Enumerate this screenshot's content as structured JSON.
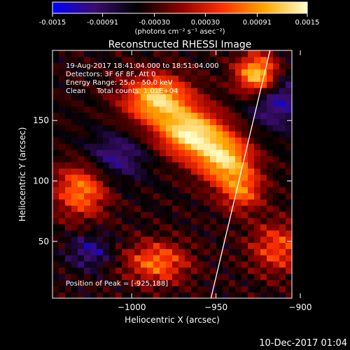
{
  "chart_data": {
    "type": "heatmap",
    "title": "Reconstructed RHESSI Image",
    "xlabel": "Heliocentric X (arcsec)",
    "ylabel": "Heliocentric Y (arcsec)",
    "colorbar": {
      "min": -0.0015,
      "max": 0.0015,
      "tick_values": [
        -0.0015,
        -0.00091,
        -0.0003,
        0.0003,
        0.00091,
        0.0015
      ],
      "tick_labels": [
        "-0.0015",
        "-0.00091",
        "-0.00030",
        "0.00030",
        "0.00091",
        "0.0015"
      ],
      "unit_label": "(photons cm⁻² s⁻¹ asec⁻²)",
      "colors": [
        "#0000ff",
        "#3a0d6e",
        "#000000",
        "#8a0000",
        "#ff3000",
        "#ffa800",
        "#ffffcc"
      ]
    },
    "xlim": [
      -1047,
      -905
    ],
    "ylim": [
      3,
      208
    ],
    "x_ticks": [
      {
        "value": -1000,
        "label": "−1000"
      },
      {
        "value": -950,
        "label": "−950"
      },
      {
        "value": -900,
        "label": "−900"
      }
    ],
    "y_ticks": [
      {
        "value": 50,
        "label": "50"
      },
      {
        "value": 100,
        "label": "100"
      },
      {
        "value": 150,
        "label": "150"
      }
    ],
    "annotations": [
      "19-Aug-2017 18:41:04.000 to 18:51:04.000",
      "Detectors: 3F 6F 8F, Att 0",
      "Energy Range: 25.0 - 50.0 keV",
      "Clean     Total counts: 1.01E+04"
    ],
    "peak_label": "Position of Peak = [-925,188]",
    "peak_position": [
      -925,
      188
    ],
    "limb_line": [
      [
        -953,
        3
      ],
      [
        -918,
        208
      ]
    ],
    "sources": [
      {
        "x": -925,
        "y": 188,
        "sx": 9,
        "sy": 12,
        "amp": 1.0
      },
      {
        "x": -985,
        "y": 168,
        "sx": 14,
        "sy": 14,
        "amp": 0.85
      },
      {
        "x": -965,
        "y": 140,
        "sx": 14,
        "sy": 14,
        "amp": 0.9
      },
      {
        "x": -945,
        "y": 118,
        "sx": 12,
        "sy": 14,
        "amp": 0.8
      },
      {
        "x": -935,
        "y": 92,
        "sx": 9,
        "sy": 12,
        "amp": 0.55
      },
      {
        "x": -1030,
        "y": 93,
        "sx": 11,
        "sy": 16,
        "amp": 0.65
      },
      {
        "x": -985,
        "y": 33,
        "sx": 13,
        "sy": 12,
        "amp": 0.6
      },
      {
        "x": -913,
        "y": 45,
        "sx": 12,
        "sy": 15,
        "amp": 0.5
      },
      {
        "x": -1025,
        "y": 42,
        "sx": 9,
        "sy": 10,
        "amp": -0.35
      },
      {
        "x": -915,
        "y": 170,
        "sx": 12,
        "sy": 18,
        "amp": -0.45
      },
      {
        "x": -1010,
        "y": 120,
        "sx": 14,
        "sy": 14,
        "amp": -0.35
      }
    ],
    "timestamp": "10-Dec-2017 01:04"
  }
}
